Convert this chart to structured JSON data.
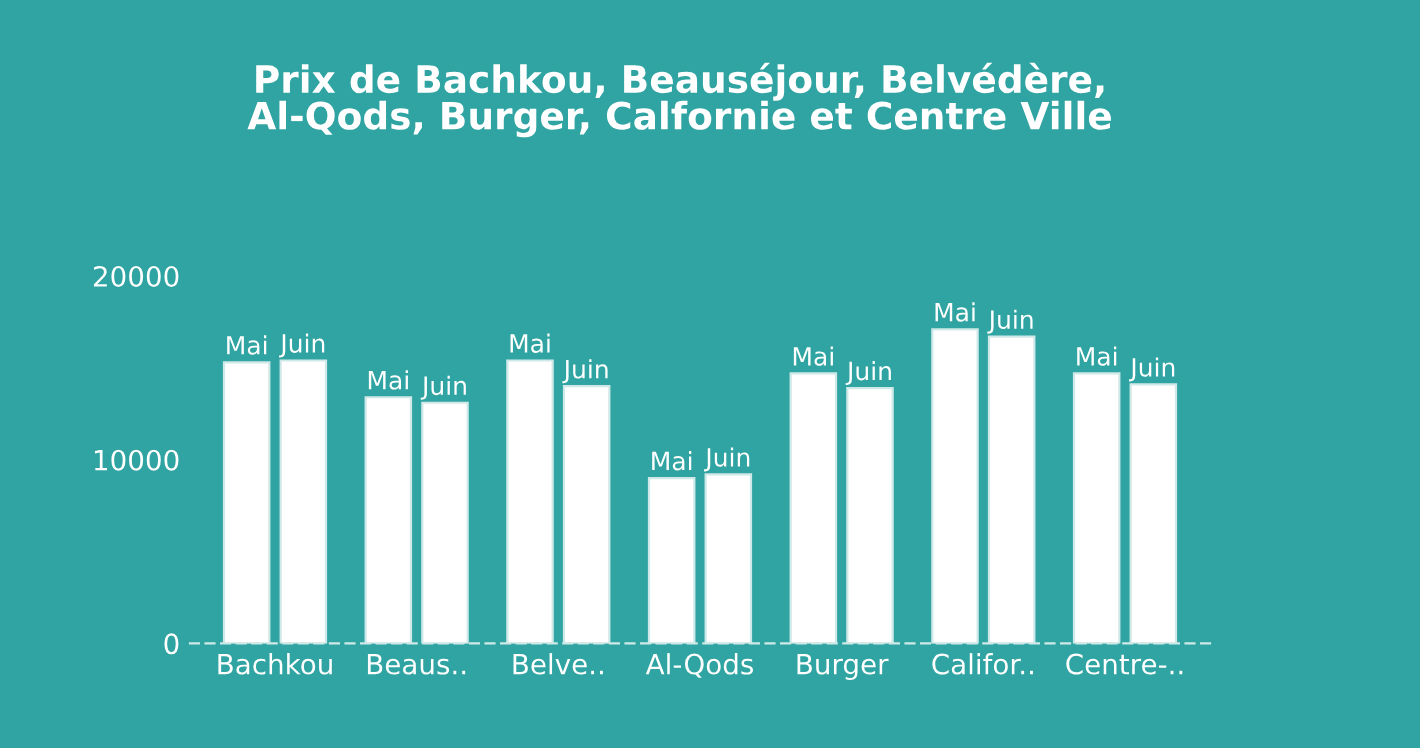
{
  "chart_data": {
    "type": "bar",
    "title": "Prix de Bachkou, Beauséjour, Belvédère,\nAl-Qods, Burger, Calfornie et Centre Ville",
    "categories": [
      "Bachkou",
      "Beaus..",
      "Belve..",
      "Al-Qods",
      "Burger",
      "Califor..",
      "Centre-.."
    ],
    "series": [
      {
        "name": "Mai",
        "color": "#ffffff",
        "values": [
          15300,
          13400,
          15400,
          9000,
          14700,
          17100,
          14700
        ]
      },
      {
        "name": "Juin",
        "color": "#ffffff",
        "values": [
          15400,
          13100,
          14000,
          9200,
          13900,
          16700,
          14100
        ]
      }
    ],
    "ylim": [
      0,
      20000
    ],
    "yticks": [
      0,
      10000,
      20000
    ],
    "grid": false,
    "legend": false
  }
}
